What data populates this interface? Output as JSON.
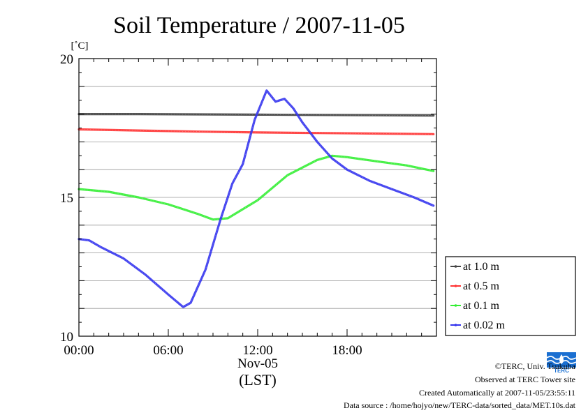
{
  "chart_data": {
    "type": "line",
    "title": "Soil Temperature / 2007-11-05",
    "ylabel": "[˚C]",
    "xlabel": "(LST)",
    "date_label": "Nov-05",
    "ylim": [
      10,
      20
    ],
    "xlim": [
      0,
      24
    ],
    "x_ticks": [
      {
        "value": 0,
        "label": "00:00"
      },
      {
        "value": 6,
        "label": "06:00"
      },
      {
        "value": 12,
        "label": "12:00"
      },
      {
        "value": 18,
        "label": "18:00"
      }
    ],
    "y_ticks": [
      {
        "value": 10,
        "label": "10"
      },
      {
        "value": 15,
        "label": "15"
      },
      {
        "value": 20,
        "label": "20"
      }
    ],
    "grid": "horizontal every 1 ˚C",
    "legend_position": "right",
    "series": [
      {
        "name": "at 1.0 m",
        "color": "#444444",
        "x": [
          0,
          4,
          8,
          12,
          16,
          20,
          23.8
        ],
        "y": [
          18.0,
          18.0,
          17.99,
          17.98,
          17.97,
          17.96,
          17.95
        ]
      },
      {
        "name": "at 0.5 m",
        "color": "#ff3333",
        "x": [
          0,
          4,
          8,
          12,
          16,
          20,
          23.8
        ],
        "y": [
          17.45,
          17.41,
          17.37,
          17.34,
          17.32,
          17.3,
          17.28
        ]
      },
      {
        "name": "at 0.1 m",
        "color": "#33ee33",
        "x": [
          0,
          2,
          4,
          6,
          8,
          9,
          10,
          12,
          14,
          16,
          17,
          18,
          20,
          22,
          23.8
        ],
        "y": [
          15.3,
          15.2,
          15.0,
          14.75,
          14.4,
          14.2,
          14.25,
          14.9,
          15.8,
          16.35,
          16.5,
          16.45,
          16.3,
          16.15,
          15.95
        ]
      },
      {
        "name": "at 0.02 m",
        "color": "#3333ee",
        "x": [
          0,
          0.7,
          1.5,
          3,
          4.5,
          6,
          7,
          7.5,
          8.5,
          9.5,
          10.3,
          11,
          11.8,
          12.6,
          13.2,
          13.8,
          14.4,
          15,
          16,
          17,
          18,
          19.5,
          21,
          22.5,
          23.8
        ],
        "y": [
          13.5,
          13.45,
          13.2,
          12.8,
          12.2,
          11.5,
          11.05,
          11.2,
          12.4,
          14.2,
          15.5,
          16.2,
          17.8,
          18.85,
          18.45,
          18.55,
          18.2,
          17.7,
          17.0,
          16.4,
          16.0,
          15.6,
          15.3,
          15.0,
          14.7
        ]
      }
    ]
  },
  "credits": {
    "copyright": "©TERC, Univ. Tsukuba",
    "observed": "Observed at TERC Tower site",
    "created": "Created Automatically at 2007-11-05/23:55:11",
    "source": "Data source : /home/hojyo/new/TERC-data/sorted_data/MET.10s.dat"
  },
  "logo": {
    "text": "TERC",
    "color": "#1a6fd1"
  }
}
